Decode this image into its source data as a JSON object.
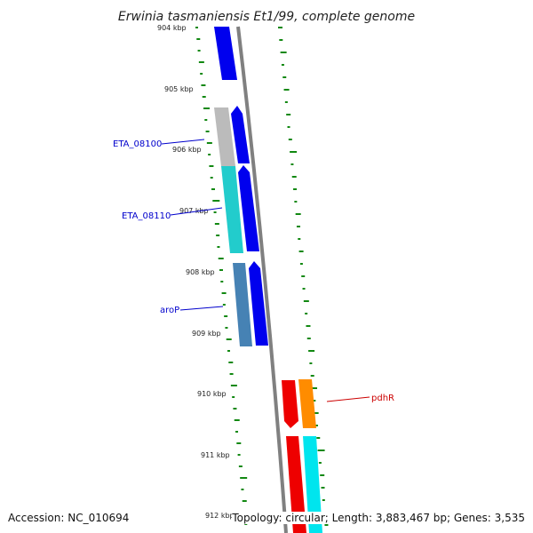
{
  "title": "Erwinia tasmaniensis Et1/99, complete genome",
  "colors": {
    "forward_cds": "#0000ee",
    "reverse_cds": "#ee0000",
    "backbone": "#808080",
    "gc_ticks": "#118811",
    "gray_feature": "#bbbbbb",
    "teal_feature": "#22cccc",
    "steel_feature": "#4682b4",
    "orange_feature": "#ff8c00",
    "cyan_feature": "#00e5ee"
  },
  "kbp_labels": [
    "904 kbp",
    "905 kbp",
    "906 kbp",
    "907 kbp",
    "908 kbp",
    "909 kbp",
    "910 kbp",
    "911 kbp",
    "912 kbp"
  ],
  "gene_labels": [
    {
      "text": "ETA_08100",
      "color": "#0000cc"
    },
    {
      "text": "ETA_08110",
      "color": "#0000cc"
    },
    {
      "text": "aroP",
      "color": "#0000cc"
    },
    {
      "text": "pdhR",
      "color": "#cc0000"
    }
  ],
  "footer": {
    "accession": "Accession: NC_010694",
    "topology": "Topology: circular; Length: 3,883,467 bp; Genes: 3,535"
  }
}
